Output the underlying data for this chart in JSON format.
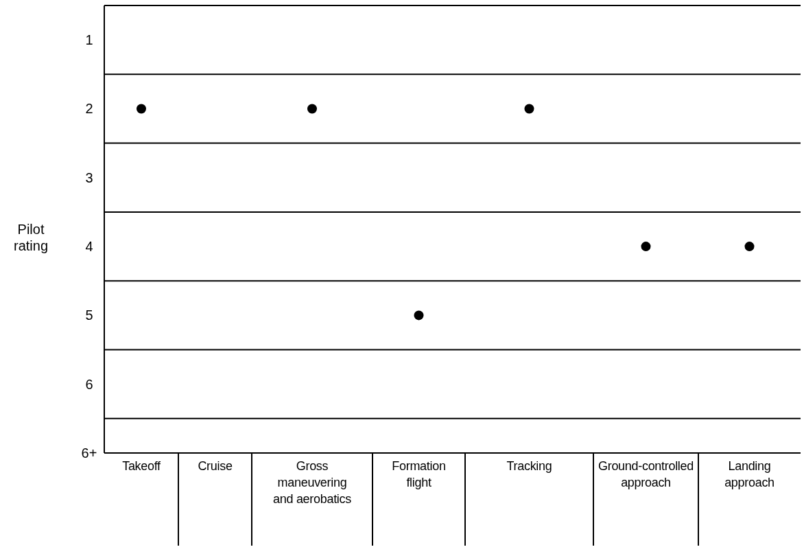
{
  "chart_data": {
    "type": "scatter",
    "ylabel": "Pilot rating",
    "categories": [
      "Takeoff",
      "Cruise",
      "Gross maneuvering and aerobatics",
      "Formation flight",
      "Tracking",
      "Ground-controlled approach",
      "Landing approach"
    ],
    "series": [
      {
        "color": "#000000",
        "values": [
          2,
          null,
          2,
          5,
          2,
          4,
          4
        ]
      }
    ],
    "marker": "circle",
    "ylim": [
      7,
      0.5
    ],
    "yticks": [
      1,
      2,
      3,
      4,
      5,
      6,
      {
        "value": 7,
        "label": "6+"
      }
    ],
    "ref_lines": [
      {
        "axis": "y",
        "value": 1.5,
        "color": "#000000"
      },
      {
        "axis": "y",
        "value": 2.5,
        "color": "#000000"
      },
      {
        "axis": "y",
        "value": 3.5,
        "color": "#000000"
      },
      {
        "axis": "y",
        "value": 4.5,
        "color": "#000000"
      },
      {
        "axis": "y",
        "value": 5.5,
        "color": "#000000"
      },
      {
        "axis": "y",
        "value": 6.5,
        "color": "#000000"
      }
    ]
  }
}
